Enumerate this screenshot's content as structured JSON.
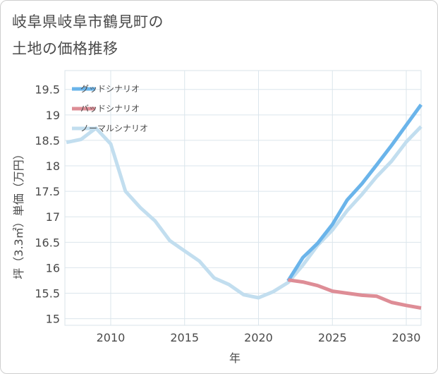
{
  "title": {
    "line1": "岐阜県岐阜市鶴見町の",
    "line2": "土地の価格推移"
  },
  "chart_data": {
    "type": "line",
    "xlabel": "年",
    "ylabel": "坪（3.3㎡）単価（万円）",
    "xlim": [
      2006.9,
      2031.0
    ],
    "ylim": [
      14.87,
      19.87
    ],
    "xticks": [
      2010,
      2015,
      2020,
      2025,
      2030
    ],
    "yticks": [
      15,
      15.5,
      16,
      16.5,
      17,
      17.5,
      18,
      18.5,
      19,
      19.5
    ],
    "grid": true,
    "legend_position": "top-left",
    "series": [
      {
        "name": "グッドシナリオ",
        "color": "#6ab4ea",
        "x": [
          2022,
          2023,
          2024,
          2025,
          2026,
          2027,
          2028,
          2029,
          2030,
          2031
        ],
        "y": [
          15.74,
          16.2,
          16.48,
          16.85,
          17.33,
          17.65,
          18.02,
          18.4,
          18.8,
          19.2
        ]
      },
      {
        "name": "バッドシナリオ",
        "color": "#de8d96",
        "x": [
          2022,
          2023,
          2024,
          2025,
          2026,
          2027,
          2028,
          2029,
          2030,
          2031
        ],
        "y": [
          15.76,
          15.72,
          15.65,
          15.54,
          15.5,
          15.46,
          15.44,
          15.32,
          15.26,
          15.21
        ]
      },
      {
        "name": "ノーマルシナリオ",
        "color": "#c2deef",
        "x": [
          2007,
          2008,
          2009,
          2010,
          2011,
          2012,
          2013,
          2014,
          2015,
          2016,
          2017,
          2018,
          2019,
          2020,
          2021,
          2022,
          2023,
          2024,
          2025,
          2026,
          2027,
          2028,
          2029,
          2030,
          2031
        ],
        "y": [
          18.46,
          18.52,
          18.74,
          18.43,
          17.5,
          17.18,
          16.92,
          16.53,
          16.33,
          16.13,
          15.8,
          15.67,
          15.47,
          15.41,
          15.53,
          15.71,
          16.05,
          16.44,
          16.74,
          17.12,
          17.44,
          17.79,
          18.09,
          18.47,
          18.77
        ]
      }
    ]
  }
}
